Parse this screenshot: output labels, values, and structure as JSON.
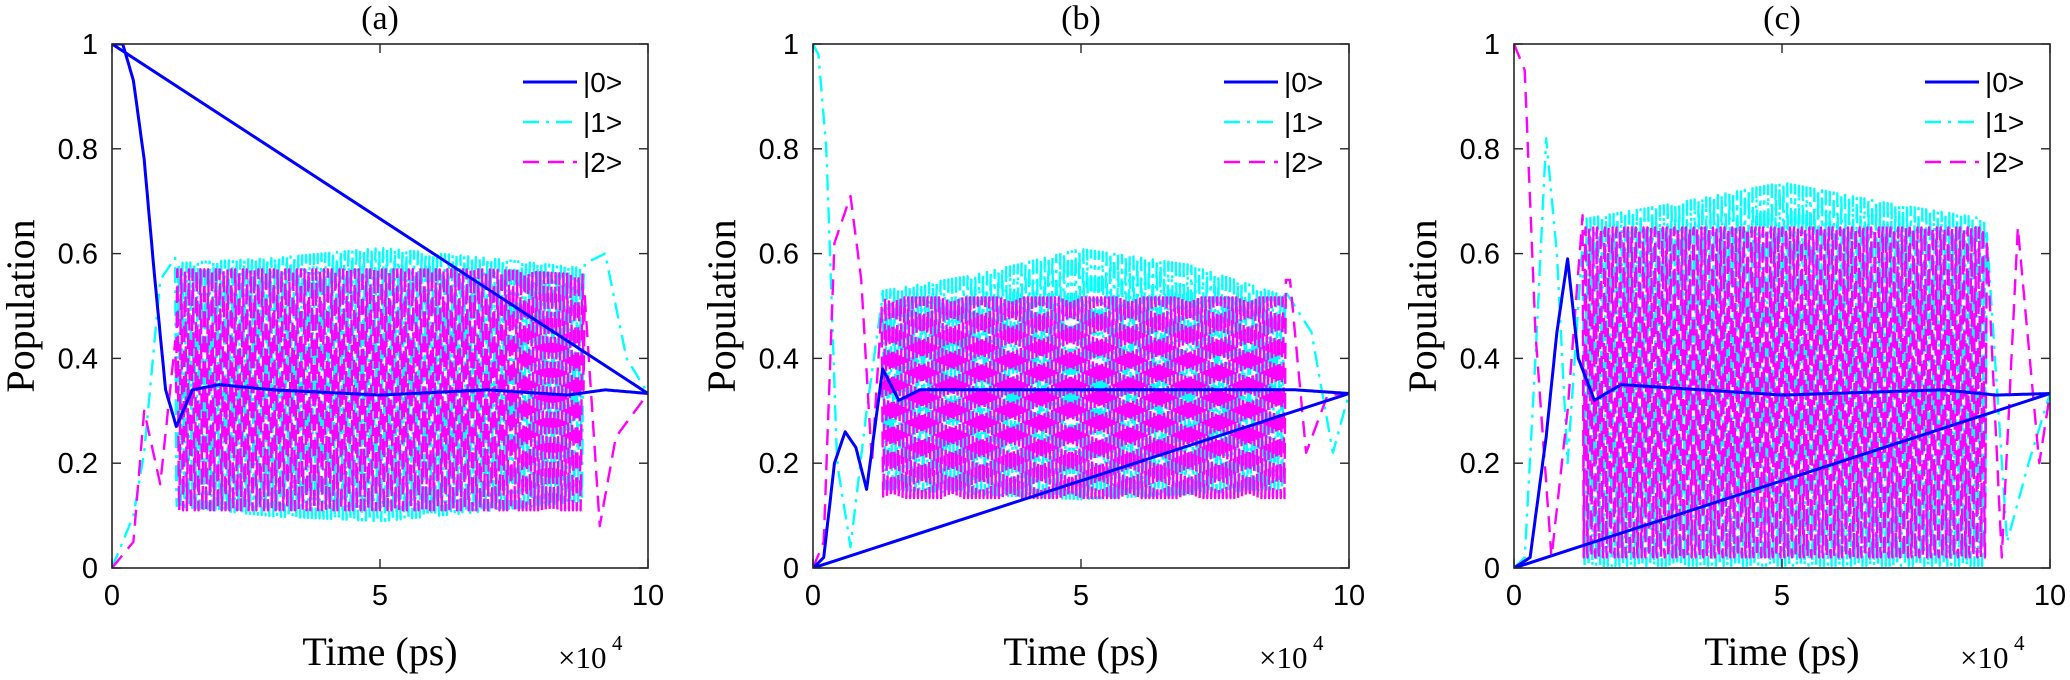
{
  "colors": {
    "s0": "#0000ff",
    "s1": "#00ffff",
    "s2": "#ff00ff",
    "axis": "#262626"
  },
  "chart_data": [
    {
      "type": "line",
      "title": "(a)",
      "xlabel": "Time (ps)",
      "ylabel": "Population",
      "x_multiplier": "×10",
      "x_multiplier_exp": "4",
      "xlim": [
        0,
        10
      ],
      "ylim": [
        0,
        1
      ],
      "xticks": [
        "0",
        "5",
        "10"
      ],
      "yticks": [
        "0",
        "0.2",
        "0.4",
        "0.6",
        "0.8",
        "1"
      ],
      "grid": false,
      "legend_position": "top-right",
      "series": [
        {
          "name": "|0>",
          "style": "solid",
          "color": "#0000ff",
          "x": [
            0,
            0.2,
            0.4,
            0.6,
            0.8,
            1.0,
            1.2,
            1.5,
            2.0,
            3.0,
            5.0,
            7.0,
            8.5,
            9.2,
            10.0
          ],
          "y": [
            1.0,
            1.0,
            0.93,
            0.78,
            0.55,
            0.34,
            0.27,
            0.34,
            0.35,
            0.34,
            0.33,
            0.34,
            0.33,
            0.34,
            0.333
          ]
        },
        {
          "name": "|1>",
          "style": "dashdot",
          "color": "#00ffff",
          "x": [
            0,
            0.4,
            0.6,
            0.9,
            1.3,
            5.0,
            8.8,
            9.2,
            9.6,
            10.0
          ],
          "y": [
            0,
            0.1,
            0.22,
            0.55,
            0.61,
            0.62,
            0.58,
            0.6,
            0.4,
            0.333
          ],
          "envelope_x": [
            1.2,
            3.0,
            5.0,
            7.0,
            8.8
          ],
          "envelope_lower": [
            0.11,
            0.09,
            0.08,
            0.1,
            0.12
          ],
          "envelope_upper": [
            0.59,
            0.6,
            0.62,
            0.6,
            0.58
          ]
        },
        {
          "name": "|2>",
          "style": "dashed",
          "color": "#ff00ff",
          "x": [
            0,
            0.4,
            0.6,
            0.9,
            1.3,
            5.0,
            8.8,
            9.1,
            9.4,
            10.0
          ],
          "y": [
            0,
            0.05,
            0.3,
            0.16,
            0.55,
            0.57,
            0.55,
            0.08,
            0.25,
            0.333
          ],
          "envelope_x": [
            1.2,
            3.0,
            5.0,
            7.0,
            8.8
          ],
          "envelope_lower": [
            0.11,
            0.11,
            0.11,
            0.11,
            0.11
          ],
          "envelope_upper": [
            0.57,
            0.57,
            0.57,
            0.57,
            0.56
          ]
        }
      ]
    },
    {
      "type": "line",
      "title": "(b)",
      "xlabel": "Time (ps)",
      "ylabel": "Population",
      "x_multiplier": "×10",
      "x_multiplier_exp": "4",
      "xlim": [
        0,
        10
      ],
      "ylim": [
        0,
        1
      ],
      "xticks": [
        "0",
        "5",
        "10"
      ],
      "yticks": [
        "0",
        "0.2",
        "0.4",
        "0.6",
        "0.8",
        "1"
      ],
      "grid": false,
      "legend_position": "top-right",
      "series": [
        {
          "name": "|0>",
          "style": "solid",
          "color": "#0000ff",
          "x": [
            0,
            0.2,
            0.4,
            0.6,
            0.8,
            1.0,
            1.3,
            1.6,
            2.0,
            5.0,
            8.0,
            9.0,
            10.0
          ],
          "y": [
            0,
            0.02,
            0.2,
            0.26,
            0.23,
            0.15,
            0.38,
            0.32,
            0.34,
            0.34,
            0.34,
            0.34,
            0.333
          ]
        },
        {
          "name": "|1>",
          "style": "dashdot",
          "color": "#00ffff",
          "x": [
            0,
            0.1,
            0.25,
            0.45,
            0.7,
            1.0,
            1.3,
            5.0,
            8.8,
            9.3,
            9.7,
            10.0
          ],
          "y": [
            1.0,
            0.98,
            0.8,
            0.2,
            0.04,
            0.3,
            0.52,
            0.61,
            0.53,
            0.45,
            0.22,
            0.333
          ],
          "envelope_x": [
            1.3,
            3.0,
            5.0,
            7.0,
            8.8
          ],
          "envelope_lower": [
            0.15,
            0.14,
            0.13,
            0.14,
            0.15
          ],
          "envelope_upper": [
            0.53,
            0.56,
            0.61,
            0.58,
            0.52
          ]
        },
        {
          "name": "|2>",
          "style": "dashed",
          "color": "#ff00ff",
          "x": [
            0,
            0.2,
            0.4,
            0.7,
            0.9,
            1.1,
            1.3,
            5.0,
            8.9,
            9.2,
            9.6,
            10.0
          ],
          "y": [
            0,
            0.05,
            0.62,
            0.71,
            0.55,
            0.2,
            0.53,
            0.53,
            0.55,
            0.22,
            0.33,
            0.333
          ],
          "envelope_x": [
            1.3,
            3.0,
            5.0,
            7.0,
            8.8
          ],
          "envelope_lower": [
            0.13,
            0.13,
            0.13,
            0.13,
            0.13
          ],
          "envelope_upper": [
            0.52,
            0.52,
            0.52,
            0.52,
            0.52
          ]
        }
      ]
    },
    {
      "type": "line",
      "title": "(c)",
      "xlabel": "Time (ps)",
      "ylabel": "Population",
      "x_multiplier": "×10",
      "x_multiplier_exp": "4",
      "xlim": [
        0,
        10
      ],
      "ylim": [
        0,
        1
      ],
      "xticks": [
        "0",
        "5",
        "10"
      ],
      "yticks": [
        "0",
        "0.2",
        "0.4",
        "0.6",
        "0.8",
        "1"
      ],
      "grid": false,
      "legend_position": "top-right",
      "series": [
        {
          "name": "|0>",
          "style": "solid",
          "color": "#0000ff",
          "x": [
            0,
            0.3,
            0.6,
            0.8,
            1.0,
            1.2,
            1.5,
            2.0,
            5.0,
            8.0,
            9.0,
            10.0
          ],
          "y": [
            0,
            0.02,
            0.25,
            0.45,
            0.59,
            0.4,
            0.32,
            0.35,
            0.33,
            0.34,
            0.33,
            0.333
          ]
        },
        {
          "name": "|1>",
          "style": "dashdot",
          "color": "#00ffff",
          "x": [
            0,
            0.2,
            0.4,
            0.6,
            0.8,
            1.0,
            1.3,
            5.0,
            8.8,
            9.2,
            9.6,
            10.0
          ],
          "y": [
            0,
            0.02,
            0.4,
            0.82,
            0.6,
            0.2,
            0.65,
            0.74,
            0.67,
            0.05,
            0.2,
            0.333
          ],
          "envelope_x": [
            1.3,
            3.0,
            5.0,
            7.0,
            8.8
          ],
          "envelope_lower": [
            0.0,
            0.0,
            0.0,
            0.0,
            0.0
          ],
          "envelope_upper": [
            0.67,
            0.7,
            0.74,
            0.7,
            0.67
          ]
        },
        {
          "name": "|2>",
          "style": "dashed",
          "color": "#ff00ff",
          "x": [
            0,
            0.2,
            0.4,
            0.7,
            1.0,
            1.3,
            5.0,
            8.8,
            9.1,
            9.4,
            9.8,
            10.0
          ],
          "y": [
            1.0,
            0.95,
            0.45,
            0.02,
            0.3,
            0.7,
            0.68,
            0.67,
            0.02,
            0.65,
            0.2,
            0.333
          ],
          "envelope_x": [
            1.3,
            3.0,
            5.0,
            7.0,
            8.8
          ],
          "envelope_lower": [
            0.0,
            0.0,
            0.0,
            0.0,
            0.0
          ],
          "envelope_upper": [
            0.67,
            0.67,
            0.67,
            0.67,
            0.67
          ]
        }
      ]
    }
  ]
}
